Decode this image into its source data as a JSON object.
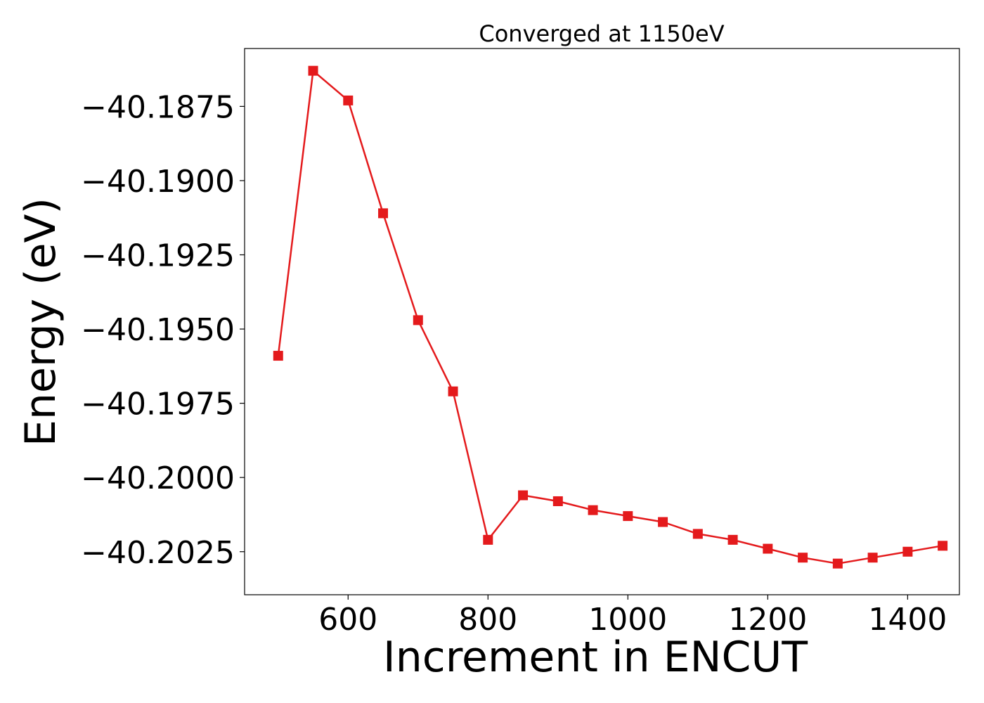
{
  "chart_data": {
    "type": "line",
    "title": "Converged at 1150eV",
    "xlabel": "Increment in ENCUT",
    "ylabel": "Energy (eV)",
    "xlim": [
      452,
      1474
    ],
    "ylim": [
      -40.20395,
      -40.18555
    ],
    "grid": false,
    "x_ticks": [
      600,
      800,
      1000,
      1200,
      1400
    ],
    "x_tick_labels": [
      "600",
      "800",
      "1000",
      "1200",
      "1400"
    ],
    "y_ticks": [
      -40.1875,
      -40.19,
      -40.1925,
      -40.195,
      -40.1975,
      -40.2,
      -40.2025
    ],
    "y_tick_labels": [
      "−40.1875",
      "−40.1900",
      "−40.1925",
      "−40.1950",
      "−40.1975",
      "−40.2000",
      "−40.2025"
    ],
    "series": [
      {
        "color": "#e41a1c",
        "marker": "square",
        "x": [
          500,
          550,
          600,
          650,
          700,
          750,
          800,
          850,
          900,
          950,
          1000,
          1050,
          1100,
          1150,
          1200,
          1250,
          1300,
          1350,
          1400,
          1450
        ],
        "y": [
          -40.1959,
          -40.1863,
          -40.1873,
          -40.1911,
          -40.1947,
          -40.1971,
          -40.2021,
          -40.2006,
          -40.2008,
          -40.2011,
          -40.2013,
          -40.2015,
          -40.2019,
          -40.2021,
          -40.2024,
          -40.2027,
          -40.2029,
          -40.2027,
          -40.2025,
          -40.2023
        ]
      }
    ]
  }
}
